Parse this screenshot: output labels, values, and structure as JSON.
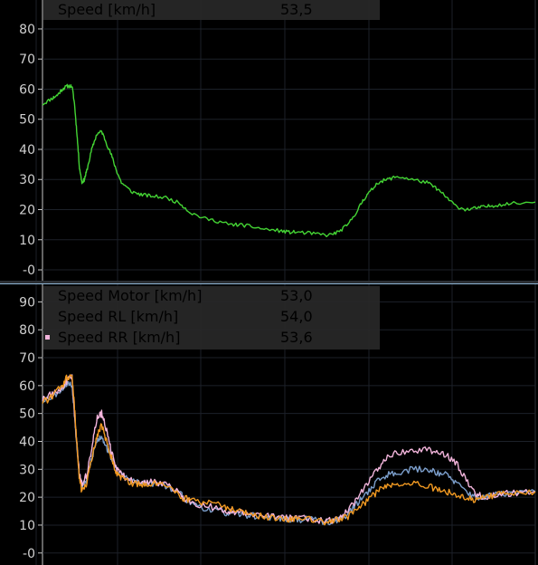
{
  "colors": {
    "background": "#000000",
    "grid": "#1c2129",
    "axis_text": "#d0d0d0",
    "legend_bg": "#282828",
    "speed": "#44d434",
    "motor": "#7c9fcc",
    "rl": "#f3b5dc",
    "rr": "#f29a22"
  },
  "chart_data": [
    {
      "type": "line",
      "title": "",
      "ylim": [
        -3,
        86
      ],
      "yticks": [
        "80",
        "70",
        "60",
        "50",
        "40",
        "30",
        "20",
        "10",
        "-0"
      ],
      "ytick_values": [
        80,
        70,
        60,
        50,
        40,
        30,
        20,
        10,
        0
      ],
      "grid": true,
      "legend_placement": "top-left",
      "xlim": [
        0,
        100
      ],
      "series": [
        {
          "name": "Speed [km/h]",
          "readout": "53,5",
          "color": "#44d434",
          "x": [
            0,
            2,
            3,
            4,
            5,
            6,
            6.5,
            7,
            7.5,
            8,
            8.5,
            9,
            10,
            11,
            12,
            13,
            14,
            15,
            16,
            18,
            20,
            22,
            25,
            28,
            30,
            33,
            36,
            38,
            40,
            42,
            45,
            48,
            50,
            52,
            55,
            58,
            60,
            62,
            64,
            65,
            66,
            68,
            70,
            72,
            75,
            78,
            80,
            82,
            84,
            86,
            88,
            90,
            92,
            95,
            100
          ],
          "y": [
            55,
            57,
            58,
            60,
            61,
            61,
            55,
            45,
            34,
            29,
            30,
            33,
            40,
            45,
            46,
            42,
            38,
            33,
            29,
            26,
            25,
            24.5,
            24,
            22,
            19,
            17,
            16,
            15,
            15,
            14.5,
            13.5,
            13,
            12.5,
            12.5,
            12,
            11.5,
            12.5,
            15,
            20,
            23,
            25,
            29,
            30,
            31,
            30,
            29,
            27,
            24,
            21,
            20,
            20.5,
            21,
            21.5,
            22,
            22.5
          ]
        }
      ]
    },
    {
      "type": "line",
      "title": "",
      "ylim": [
        -3,
        95
      ],
      "yticks": [
        "90",
        "80",
        "70",
        "60",
        "50",
        "40",
        "30",
        "20",
        "10",
        "-0"
      ],
      "ytick_values": [
        90,
        80,
        70,
        60,
        50,
        40,
        30,
        20,
        10,
        0
      ],
      "grid": true,
      "legend_placement": "top-left",
      "xlim": [
        0,
        100
      ],
      "series": [
        {
          "name": "Speed Motor [km/h]",
          "readout": "53,0",
          "color": "#7c9fcc",
          "x": [
            0,
            2,
            4,
            5,
            6,
            6.5,
            7,
            7.5,
            8,
            9,
            10,
            11,
            12,
            13,
            14,
            15,
            16,
            18,
            20,
            22,
            25,
            28,
            30,
            33,
            36,
            38,
            40,
            42,
            45,
            48,
            50,
            52,
            55,
            58,
            60,
            62,
            64,
            66,
            68,
            70,
            72,
            75,
            78,
            80,
            82,
            84,
            86,
            88,
            90,
            92,
            95,
            100
          ],
          "y": [
            55,
            56,
            59,
            61,
            60,
            50,
            38,
            27,
            24,
            26,
            34,
            40,
            42,
            38,
            34,
            30,
            28,
            26,
            25,
            25,
            24,
            21,
            18,
            16,
            15,
            14,
            14,
            13.5,
            13,
            12.5,
            12,
            12,
            12,
            11,
            12,
            14,
            18,
            22,
            26,
            28,
            29,
            30,
            30,
            29,
            28,
            25,
            22,
            20,
            20,
            21,
            21.5,
            22
          ]
        },
        {
          "name": "Speed RL [km/h]",
          "readout": "54,0",
          "color": "#f3b5dc",
          "x": [
            0,
            2,
            4,
            5,
            6,
            6.5,
            7,
            7.5,
            8,
            9,
            10,
            11,
            12,
            13,
            14,
            15,
            16,
            18,
            20,
            22,
            25,
            28,
            30,
            33,
            36,
            38,
            40,
            42,
            45,
            48,
            50,
            52,
            55,
            58,
            60,
            62,
            64,
            66,
            68,
            70,
            72,
            75,
            78,
            80,
            82,
            84,
            86,
            88,
            90,
            92,
            95,
            100
          ],
          "y": [
            55,
            57,
            59,
            62,
            63,
            50,
            38,
            28,
            25,
            28,
            38,
            48,
            50,
            44,
            36,
            30,
            28,
            26,
            25,
            25.5,
            25,
            21,
            18,
            17,
            16,
            15,
            14.5,
            14,
            13.5,
            13,
            12.5,
            12.5,
            12,
            11.5,
            12.5,
            15,
            20,
            25,
            30,
            34,
            36,
            37,
            37,
            36,
            35,
            32,
            26,
            21,
            20,
            21,
            21.5,
            22
          ]
        },
        {
          "name": "Speed RR [km/h]",
          "readout": "53,6",
          "color": "#f29a22",
          "x": [
            0,
            2,
            4,
            5,
            6,
            6.5,
            7,
            7.5,
            8,
            9,
            10,
            11,
            12,
            13,
            14,
            15,
            16,
            18,
            20,
            22,
            25,
            28,
            30,
            33,
            36,
            38,
            40,
            42,
            45,
            48,
            50,
            52,
            55,
            58,
            60,
            62,
            64,
            66,
            68,
            70,
            72,
            75,
            78,
            80,
            82,
            84,
            86,
            88,
            90,
            92,
            95,
            100
          ],
          "y": [
            54,
            56,
            60,
            63,
            64,
            52,
            38,
            26,
            22,
            25,
            34,
            42,
            46,
            40,
            34,
            29,
            27,
            25,
            24.5,
            25,
            24.5,
            20,
            19,
            18,
            17,
            16,
            15,
            14,
            13,
            12.5,
            12,
            12,
            12,
            11,
            12,
            13,
            16,
            19,
            22,
            24,
            25,
            25,
            24,
            23,
            22,
            21,
            20,
            19,
            20,
            21,
            21.5,
            22
          ]
        }
      ]
    }
  ]
}
